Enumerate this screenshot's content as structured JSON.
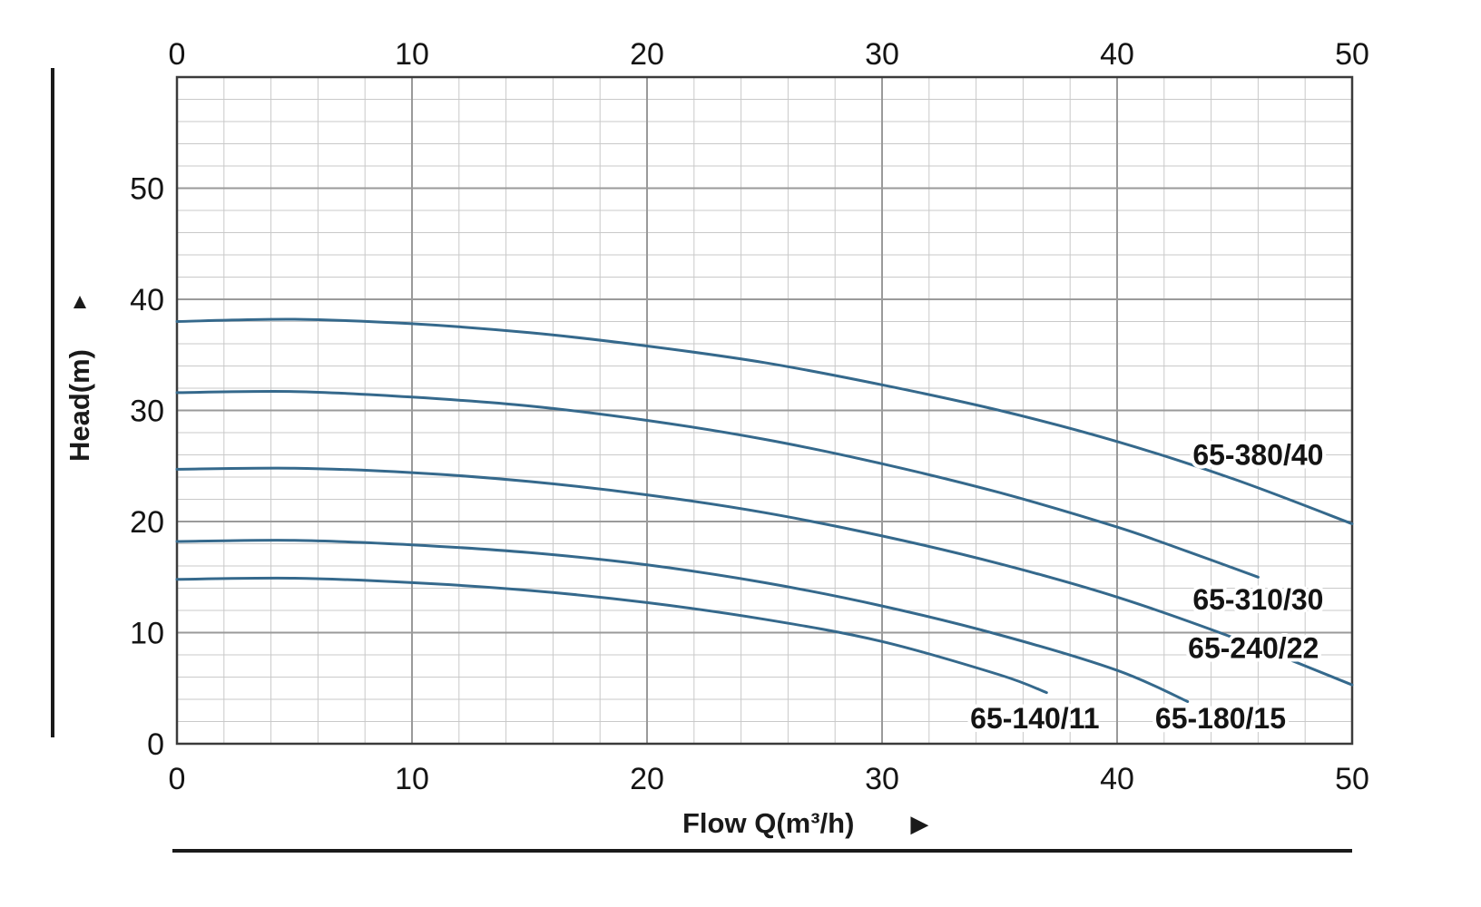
{
  "axes": {
    "x_label": "Flow Q(m³/h)",
    "y_label": "Head(m)",
    "x_arrow": "▶",
    "y_arrow": "▲"
  },
  "chart_data": {
    "type": "line",
    "title": "",
    "xlabel": "Flow Q(m³/h)",
    "ylabel": "Head(m)",
    "xlim": [
      0,
      50
    ],
    "ylim": [
      0,
      60
    ],
    "x_ticks": [
      0,
      10,
      20,
      30,
      40,
      50
    ],
    "y_ticks": [
      0,
      10,
      20,
      30,
      40,
      50
    ],
    "minor_step": 2,
    "major_step": 10,
    "grid": true,
    "legend_position": "labels-on-chart",
    "colors": {
      "curve": "#35698c",
      "grid_minor": "#c9c9c9",
      "grid_major": "#9a9a9a",
      "border": "#3b3b3b",
      "text": "#141414"
    },
    "series": [
      {
        "name": "65-380/40",
        "label_pos": [
          46,
          26
        ],
        "points": [
          [
            0,
            38
          ],
          [
            5,
            38.2
          ],
          [
            10,
            37.8
          ],
          [
            15,
            37
          ],
          [
            20,
            35.8
          ],
          [
            25,
            34.3
          ],
          [
            30,
            32.3
          ],
          [
            35,
            30
          ],
          [
            40,
            27.2
          ],
          [
            45,
            23.8
          ],
          [
            50,
            19.8
          ]
        ]
      },
      {
        "name": "65-310/30",
        "label_pos": [
          46,
          13
        ],
        "points": [
          [
            0,
            31.6
          ],
          [
            5,
            31.7
          ],
          [
            10,
            31.2
          ],
          [
            15,
            30.4
          ],
          [
            20,
            29.1
          ],
          [
            25,
            27.4
          ],
          [
            30,
            25.2
          ],
          [
            35,
            22.6
          ],
          [
            40,
            19.5
          ],
          [
            43,
            17.3
          ],
          [
            46,
            15
          ]
        ]
      },
      {
        "name": "65-240/22",
        "label_pos": [
          45.8,
          8.6
        ],
        "points": [
          [
            0,
            24.7
          ],
          [
            5,
            24.8
          ],
          [
            10,
            24.4
          ],
          [
            15,
            23.6
          ],
          [
            20,
            22.4
          ],
          [
            25,
            20.8
          ],
          [
            30,
            18.7
          ],
          [
            35,
            16.2
          ],
          [
            40,
            13.2
          ],
          [
            45,
            9.5
          ],
          [
            50,
            5.3
          ]
        ]
      },
      {
        "name": "65-180/15",
        "label_pos": [
          44.4,
          2.3
        ],
        "points": [
          [
            0,
            18.2
          ],
          [
            5,
            18.3
          ],
          [
            10,
            17.9
          ],
          [
            15,
            17.2
          ],
          [
            20,
            16.1
          ],
          [
            25,
            14.5
          ],
          [
            30,
            12.4
          ],
          [
            35,
            9.8
          ],
          [
            40,
            6.6
          ],
          [
            43,
            3.8
          ]
        ]
      },
      {
        "name": "65-140/11",
        "label_pos": [
          36.5,
          2.3
        ],
        "points": [
          [
            0,
            14.8
          ],
          [
            5,
            14.9
          ],
          [
            10,
            14.5
          ],
          [
            15,
            13.8
          ],
          [
            20,
            12.7
          ],
          [
            25,
            11.2
          ],
          [
            30,
            9.2
          ],
          [
            35,
            6.2
          ],
          [
            37,
            4.6
          ]
        ]
      }
    ]
  }
}
